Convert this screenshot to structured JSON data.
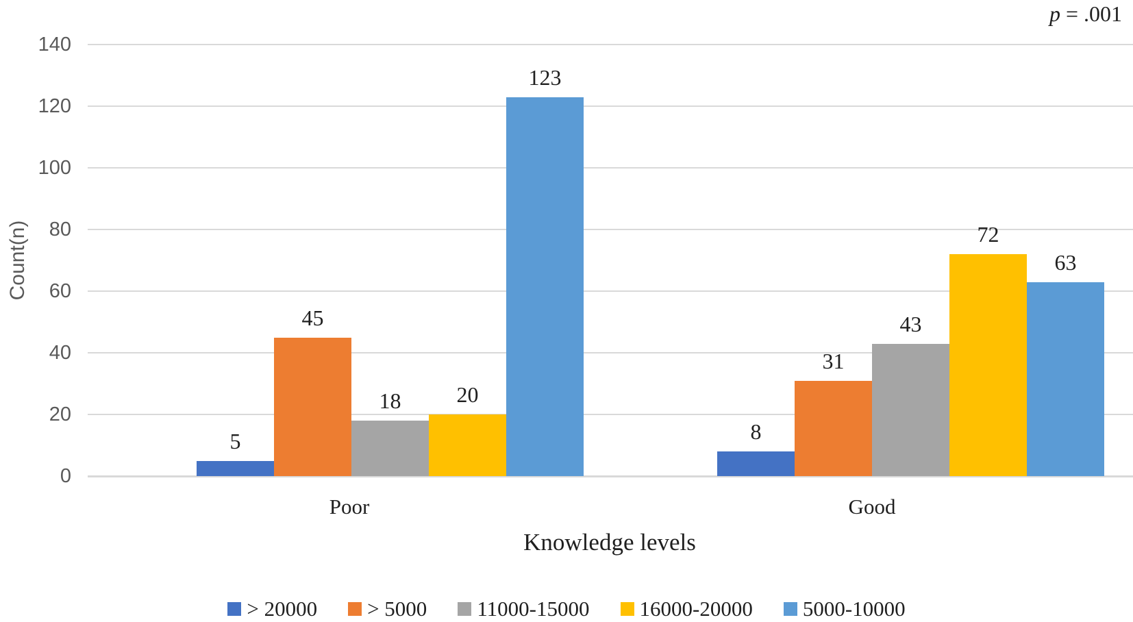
{
  "annotation": {
    "italic_part": "p",
    "rest_part": " = .001"
  },
  "colors": {
    "gridline": "#d9d9d9",
    "axis_line": "#d9d9d9",
    "tick_label": "#595959",
    "text": "#1f1f1f"
  },
  "chart_data": {
    "type": "bar",
    "title": "",
    "xlabel": "Knowledge levels",
    "ylabel": "Count(n)",
    "ylim": [
      0,
      140
    ],
    "ytick_step": 20,
    "yticks": [
      0,
      20,
      40,
      60,
      80,
      100,
      120,
      140
    ],
    "grid": true,
    "legend_position": "bottom",
    "annotation": "p = .001",
    "categories": [
      "Poor",
      "Good"
    ],
    "series": [
      {
        "name": "> 20000",
        "color": "#4472C4",
        "values": [
          5,
          8
        ]
      },
      {
        "name": "> 5000",
        "color": "#ED7D31",
        "values": [
          45,
          31
        ]
      },
      {
        "name": "11000-15000",
        "color": "#A5A5A5",
        "values": [
          18,
          43
        ]
      },
      {
        "name": "16000-20000",
        "color": "#FFC000",
        "values": [
          20,
          72
        ]
      },
      {
        "name": "5000-10000",
        "color": "#5B9BD5",
        "values": [
          123,
          63
        ]
      }
    ]
  }
}
